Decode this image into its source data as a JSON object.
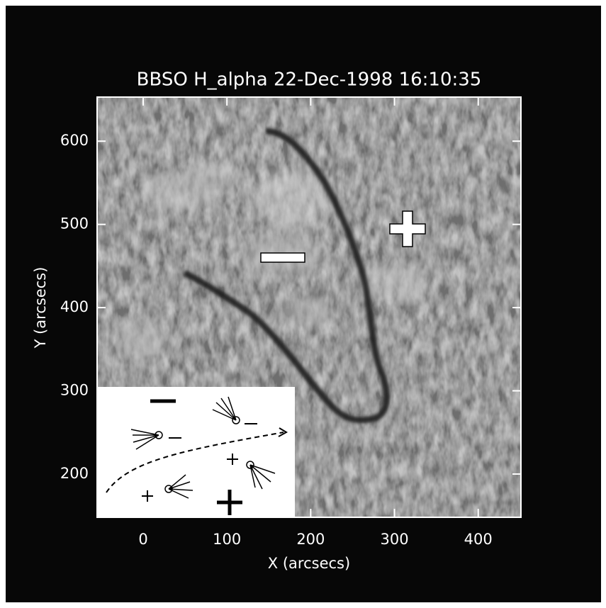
{
  "chart_data": {
    "type": "image",
    "title": "BBSO H_alpha 22-Dec-1998 16:10:35",
    "x_label": "X (arcsecs)",
    "y_label": "Y (arcsecs)",
    "xlim": [
      -55,
      451
    ],
    "ylim": [
      148,
      653
    ],
    "xticks": [
      0,
      100,
      200,
      300,
      400
    ],
    "yticks": [
      200,
      300,
      400,
      500,
      600
    ]
  }
}
